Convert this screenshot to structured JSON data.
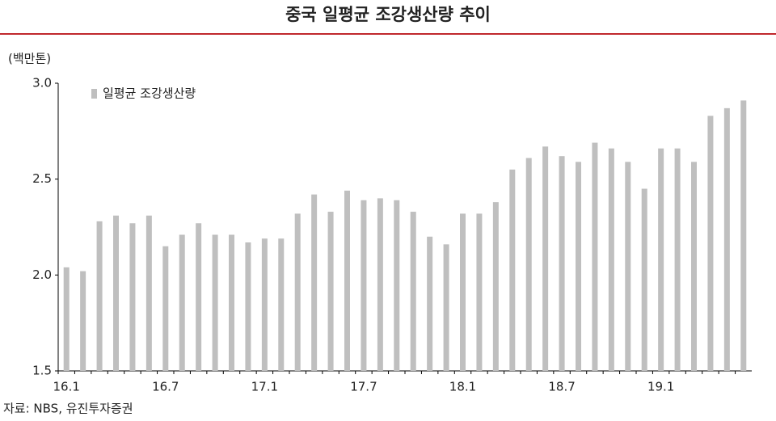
{
  "chart_data": {
    "type": "bar",
    "title": "중국 일평균 조강생산량 추이",
    "y_label": "(백만톤)",
    "source": "자료: NBS, 유진투자증권",
    "categories": [
      "16.1",
      null,
      null,
      null,
      null,
      null,
      "16.7",
      null,
      null,
      null,
      null,
      null,
      "17.1",
      null,
      null,
      null,
      null,
      null,
      "17.7",
      null,
      null,
      null,
      null,
      null,
      "18.1",
      null,
      null,
      null,
      null,
      null,
      "18.7",
      null,
      null,
      null,
      null,
      null,
      "19.1",
      null,
      null,
      null,
      null,
      null
    ],
    "series": [
      {
        "name": "일평균 조강생산량",
        "color": "#bfbfbf",
        "values": [
          2.04,
          2.02,
          2.28,
          2.31,
          2.27,
          2.31,
          2.15,
          2.21,
          2.27,
          2.21,
          2.21,
          2.17,
          2.19,
          2.19,
          2.32,
          2.42,
          2.33,
          2.44,
          2.39,
          2.4,
          2.39,
          2.33,
          2.2,
          2.16,
          2.32,
          2.32,
          2.38,
          2.55,
          2.61,
          2.67,
          2.62,
          2.59,
          2.69,
          2.66,
          2.59,
          2.45,
          2.66,
          2.66,
          2.59,
          2.83,
          2.87,
          2.91
        ]
      }
    ],
    "ylim": [
      1.5,
      3.0
    ],
    "yticks": [
      {
        "value": 1.5,
        "label": "1.5"
      },
      {
        "value": 2.0,
        "label": "2.0"
      },
      2.5,
      {
        "value": 3.0,
        "label": "3.0"
      }
    ],
    "legend": "top-left",
    "grid": false
  }
}
